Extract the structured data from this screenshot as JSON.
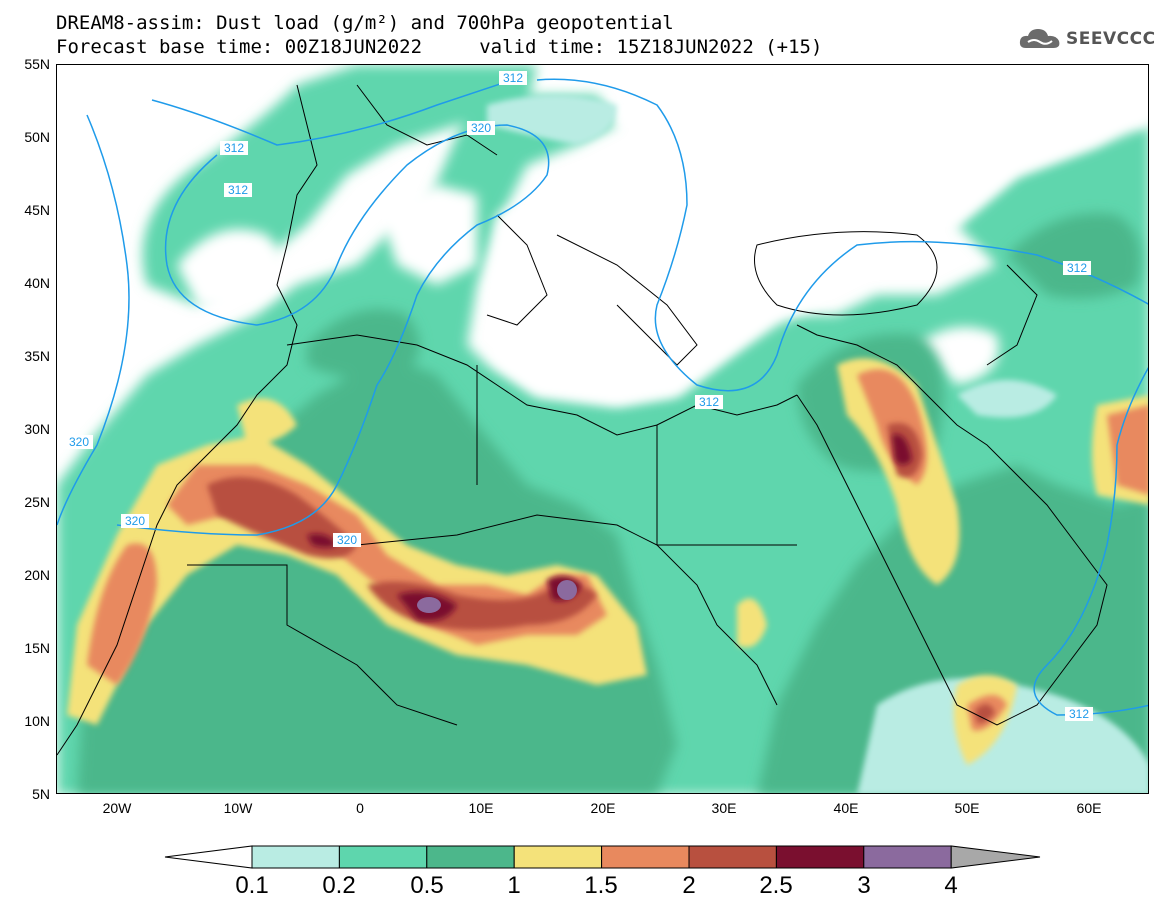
{
  "title": {
    "line1": "DREAM8-assim: Dust load (g/m²) and 700hPa geopotential",
    "line2": "Forecast base time: 00Z18JUN2022     valid time: 15Z18JUN2022 (+15)"
  },
  "logo": {
    "text": "SEEVCCC",
    "icon": "cloud-icon"
  },
  "map": {
    "lon_range": [
      -25,
      65
    ],
    "lat_range": [
      5,
      55
    ],
    "lat_ticks": [
      "55N",
      "50N",
      "45N",
      "40N",
      "35N",
      "30N",
      "25N",
      "20N",
      "15N",
      "10N",
      "5N"
    ],
    "lon_ticks": [
      "20W",
      "10W",
      "0",
      "10E",
      "20E",
      "30E",
      "40E",
      "50E",
      "60E"
    ],
    "contour_labels": [
      "312",
      "312",
      "320",
      "312",
      "312",
      "312",
      "320",
      "320",
      "320",
      "312"
    ],
    "contour_color": "#1f9bea"
  },
  "colorbar": {
    "labels": [
      "0.1",
      "0.2",
      "0.5",
      "1",
      "1.5",
      "2",
      "2.5",
      "3",
      "4"
    ],
    "colors": [
      "#b9ece3",
      "#5ed6ad",
      "#4cb78b",
      "#f4e27a",
      "#e8895e",
      "#b8503f",
      "#7a0f2f",
      "#8b6a9e",
      "#a8a8a8"
    ]
  }
}
